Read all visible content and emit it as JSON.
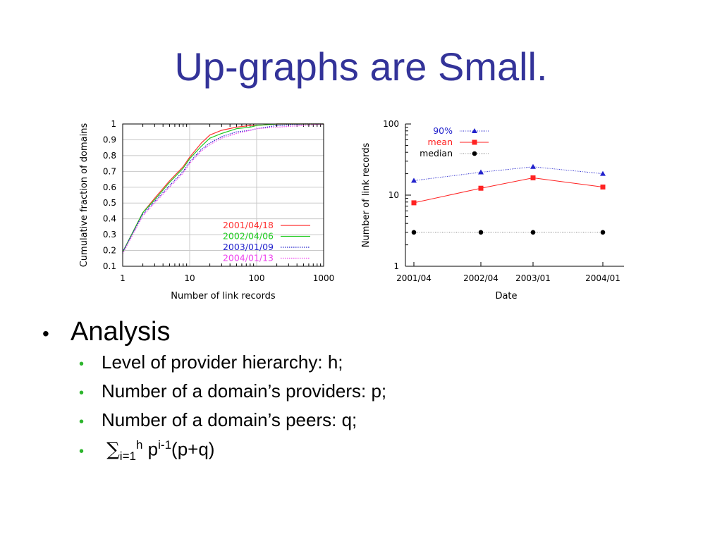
{
  "slide": {
    "title": "Up-graphs are Small.",
    "bullets": {
      "main": "Analysis",
      "sub": [
        "Level of provider hierarchy: h;",
        "Number of a domain’s providers: p;",
        "Number of a domain’s peers: q;"
      ],
      "formula": {
        "sigma": "∑",
        "sub": "i=1",
        "sup": "h",
        "p": " p",
        "exp": "i-1",
        "tail": "(p+q)"
      }
    }
  },
  "chart_data": [
    {
      "type": "line",
      "xlabel": "Number of link records",
      "ylabel": "Cumulative fraction of domains",
      "xscale": "log",
      "xlim": [
        1,
        1000
      ],
      "ylim": [
        0.1,
        1
      ],
      "xticks": [
        "1",
        "10",
        "100",
        "1000"
      ],
      "yticks": [
        "0.1",
        "0.2",
        "0.3",
        "0.4",
        "0.5",
        "0.6",
        "0.7",
        "0.8",
        "0.9",
        "1"
      ],
      "grid": true,
      "legend_position": "bottom-right",
      "series": [
        {
          "name": "2001/04/18",
          "color": "#ff3333",
          "style": "solid",
          "x": [
            1,
            2,
            3,
            5,
            8,
            10,
            15,
            20,
            30,
            50,
            80,
            100,
            200,
            500,
            1000
          ],
          "y": [
            0.19,
            0.44,
            0.53,
            0.64,
            0.73,
            0.79,
            0.88,
            0.93,
            0.96,
            0.98,
            0.99,
            0.99,
            1.0,
            1.0,
            1.0
          ]
        },
        {
          "name": "2002/04/06",
          "color": "#22cc22",
          "style": "solid",
          "x": [
            1,
            2,
            3,
            5,
            8,
            10,
            15,
            20,
            30,
            50,
            80,
            100,
            200,
            500,
            1000
          ],
          "y": [
            0.19,
            0.44,
            0.52,
            0.63,
            0.72,
            0.78,
            0.86,
            0.91,
            0.94,
            0.97,
            0.98,
            0.99,
            1.0,
            1.0,
            1.0
          ]
        },
        {
          "name": "2003/01/09",
          "color": "#2222cc",
          "style": "dotted",
          "x": [
            1,
            2,
            3,
            5,
            8,
            10,
            15,
            20,
            30,
            50,
            80,
            100,
            200,
            500,
            1000
          ],
          "y": [
            0.19,
            0.43,
            0.51,
            0.61,
            0.7,
            0.76,
            0.84,
            0.88,
            0.92,
            0.95,
            0.96,
            0.97,
            0.99,
            1.0,
            1.0
          ]
        },
        {
          "name": "2004/01/13",
          "color": "#ee44ee",
          "style": "dotted",
          "x": [
            1,
            2,
            3,
            5,
            8,
            10,
            15,
            20,
            30,
            50,
            80,
            100,
            200,
            500,
            1000
          ],
          "y": [
            0.18,
            0.42,
            0.5,
            0.6,
            0.69,
            0.75,
            0.83,
            0.87,
            0.91,
            0.94,
            0.96,
            0.97,
            0.98,
            0.99,
            1.0
          ]
        }
      ]
    },
    {
      "type": "line",
      "xlabel": "Date",
      "ylabel": "Number of link records",
      "yscale": "log",
      "ylim": [
        1,
        100
      ],
      "categories": [
        "2001/04",
        "2002/04",
        "2003/01",
        "2004/01"
      ],
      "yticks": [
        "1",
        "10",
        "100"
      ],
      "grid": false,
      "legend_position": "top-left",
      "series": [
        {
          "name": "90%",
          "color": "#2222cc",
          "marker": "triangle",
          "style": "dotted",
          "values": [
            16,
            21,
            25,
            20
          ]
        },
        {
          "name": "mean",
          "color": "#ff2222",
          "marker": "square",
          "style": "solid",
          "values": [
            7.8,
            12.5,
            17.5,
            13
          ]
        },
        {
          "name": "median",
          "color": "#000000",
          "marker": "circle",
          "style": "dotted",
          "values": [
            3,
            3,
            3,
            3
          ]
        }
      ]
    }
  ]
}
